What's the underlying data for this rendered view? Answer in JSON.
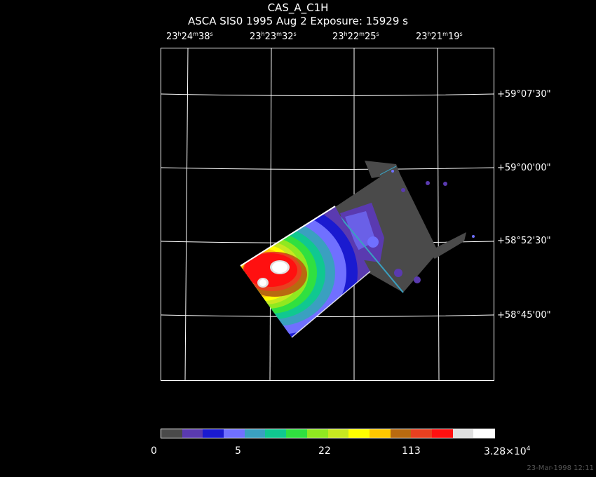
{
  "header": {
    "title": "CAS_A_C1H",
    "subtitle": "ASCA SIS0    1995 Aug  2    Exposure: 15929 s"
  },
  "ra_labels": [
    {
      "h": "23",
      "m": "24",
      "s": "38"
    },
    {
      "h": "23",
      "m": "23",
      "s": "32"
    },
    {
      "h": "23",
      "m": "22",
      "s": "25"
    },
    {
      "h": "23",
      "m": "21",
      "s": "19"
    }
  ],
  "dec_labels": [
    "+59°07'30\"",
    "+59°00'00\"",
    "+58°52'30\"",
    "+58°45'00\""
  ],
  "colorbar": {
    "labels": [
      "0",
      "5",
      "22",
      "113"
    ],
    "max_label_mantissa": "3.28×10",
    "max_label_exp": "4",
    "colors": [
      "#4a4a4a",
      "#5a3ab0",
      "#1a1ad0",
      "#7070ff",
      "#3aa0c0",
      "#10c890",
      "#30e040",
      "#90e820",
      "#c8e820",
      "#ffff00",
      "#ffc800",
      "#b86a10",
      "#e84020",
      "#ff1010",
      "#e0e0e0",
      "#ffffff"
    ]
  },
  "footer": {
    "timestamp": "23-Mar-1998 12:11"
  }
}
